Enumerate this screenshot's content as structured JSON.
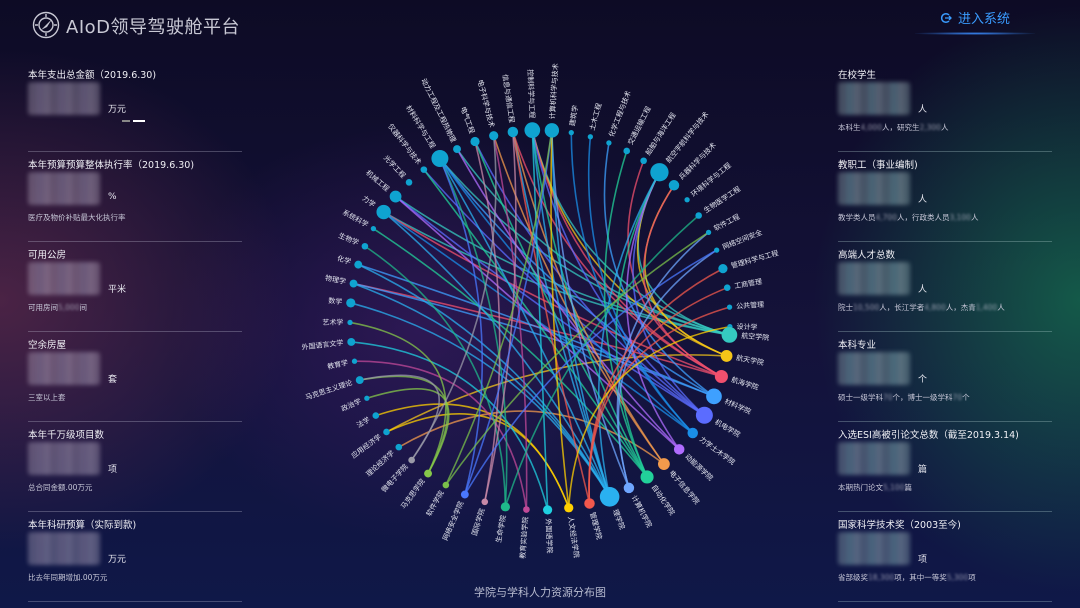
{
  "header": {
    "title": "AIoD领导驾驶舱平台",
    "enter_label": "进入系统",
    "enter_icon": "logout-arrow-icon",
    "logo_icon": "compass-gauge-icon"
  },
  "left_cards": [
    {
      "title": "本年支出总金额（2019.6.30)",
      "unit": "万元",
      "sub": [],
      "carousel": true
    },
    {
      "title": "本年预算预算整体执行率（2019.6.30)",
      "unit": "%",
      "sub": [
        "医疗及物价补贴最大化执行率",
        "",
        ""
      ]
    },
    {
      "title": "可用公房",
      "unit": "平米",
      "sub": [
        "可用房间",
        "5,000",
        "间"
      ]
    },
    {
      "title": "空余房屋",
      "unit": "套",
      "sub": [
        "三室以上",
        "",
        "套"
      ]
    },
    {
      "title": "本年千万级项目数",
      "unit": "项",
      "sub": [
        "总合同金额",
        "",
        ".00万元"
      ]
    },
    {
      "title": "本年科研预算（实际到款)",
      "unit": "万元",
      "sub": [
        "比去年同期增加",
        "",
        ".00万元"
      ]
    }
  ],
  "right_cards": [
    {
      "title": "在校学生",
      "unit": "人",
      "sub": [
        "本科生",
        "4,000",
        "人，研究生",
        "2,300",
        "人"
      ]
    },
    {
      "title": "教职工（事业编制)",
      "unit": "人",
      "sub": [
        "教学类人员",
        "4,700",
        "人，行政类人员",
        "3,100",
        "人"
      ]
    },
    {
      "title": "高端人才总数",
      "unit": "人",
      "sub": [
        "院士",
        "10,500",
        "人，长江学者",
        "4,800",
        "人，杰青",
        "1,400",
        "人"
      ]
    },
    {
      "title": "本科专业",
      "unit": "个",
      "sub": [
        "硕士一级学科",
        "70",
        "个，博士一级学科",
        "70",
        "个"
      ]
    },
    {
      "title": "入选ESI高被引论文总数（截至2019.3.14)",
      "unit": "篇",
      "sub": [
        "本期热门论文",
        "5,100",
        "篇"
      ]
    },
    {
      "title": "国家科学技术奖（2003至今)",
      "unit": "项",
      "sub": [
        "省部级奖",
        "18,300",
        "项，其中一等奖",
        "5,300",
        "项"
      ]
    }
  ],
  "chart_data": {
    "type": "chord",
    "title": "学院与学科人力资源分布图",
    "discipline_color": "#0fa3d0",
    "disciplines": [
      {
        "name": "理论经济学",
        "value": 2
      },
      {
        "name": "应用经济学",
        "value": 2
      },
      {
        "name": "法学",
        "value": 2
      },
      {
        "name": "政治学",
        "value": 1
      },
      {
        "name": "马克思主义理论",
        "value": 3
      },
      {
        "name": "教育学",
        "value": 1
      },
      {
        "name": "外国语言文学",
        "value": 3
      },
      {
        "name": "艺术学",
        "value": 1
      },
      {
        "name": "数学",
        "value": 4
      },
      {
        "name": "物理学",
        "value": 3
      },
      {
        "name": "化学",
        "value": 3
      },
      {
        "name": "生物学",
        "value": 2
      },
      {
        "name": "系统科学",
        "value": 1
      },
      {
        "name": "力学",
        "value": 8
      },
      {
        "name": "机械工程",
        "value": 6
      },
      {
        "name": "光学工程",
        "value": 2
      },
      {
        "name": "仪器科学与技术",
        "value": 2
      },
      {
        "name": "材料科学与工程",
        "value": 10
      },
      {
        "name": "动力工程及工程热物理",
        "value": 3
      },
      {
        "name": "电气工程",
        "value": 4
      },
      {
        "name": "电子科学与技术",
        "value": 4
      },
      {
        "name": "信息与通信工程",
        "value": 5
      },
      {
        "name": "控制科学与工程",
        "value": 9
      },
      {
        "name": "计算机科学与技术",
        "value": 8
      },
      {
        "name": "建筑学",
        "value": 1
      },
      {
        "name": "土木工程",
        "value": 1
      },
      {
        "name": "化学工程与技术",
        "value": 1
      },
      {
        "name": "交通运输工程",
        "value": 2
      },
      {
        "name": "船舶与海洋工程",
        "value": 2
      },
      {
        "name": "航空宇航科学与技术",
        "value": 11
      },
      {
        "name": "兵器科学与技术",
        "value": 5
      },
      {
        "name": "环境科学与工程",
        "value": 1
      },
      {
        "name": "生物医学工程",
        "value": 2
      },
      {
        "name": "软件工程",
        "value": 1
      },
      {
        "name": "网络空间安全",
        "value": 1
      },
      {
        "name": "管理科学与工程",
        "value": 4
      },
      {
        "name": "工商管理",
        "value": 2
      },
      {
        "name": "公共管理",
        "value": 1
      },
      {
        "name": "设计学",
        "value": 1
      }
    ],
    "colleges": [
      {
        "name": "航空学院",
        "value": 9,
        "color": "#35c9c0",
        "links": [
          "航空宇航科学与技术",
          "力学",
          "控制科学与工程",
          "材料科学与工程",
          "机械工程",
          "动力工程及工程热物理"
        ]
      },
      {
        "name": "航天学院",
        "value": 6,
        "color": "#f5c518",
        "links": [
          "航空宇航科学与技术",
          "控制科学与工程",
          "兵器科学与技术",
          "应用经济学"
        ]
      },
      {
        "name": "航海学院",
        "value": 7,
        "color": "#f0506e",
        "links": [
          "船舶与海洋工程",
          "兵器科学与技术",
          "控制科学与工程",
          "物理学",
          "力学",
          "信息与通信工程"
        ]
      },
      {
        "name": "材料学院",
        "value": 9,
        "color": "#3ea0ff",
        "links": [
          "材料科学与工程",
          "化学",
          "物理学",
          "化学工程与技术"
        ]
      },
      {
        "name": "机电学院",
        "value": 10,
        "color": "#5b6cff",
        "links": [
          "机械工程",
          "航空宇航科学与技术",
          "控制科学与工程",
          "电气工程",
          "仪器科学与技术"
        ]
      },
      {
        "name": "力学土木学院",
        "value": 5,
        "color": "#1a8ee8",
        "links": [
          "力学",
          "土木工程",
          "建筑学",
          "材料科学与工程"
        ]
      },
      {
        "name": "动能源学院",
        "value": 5,
        "color": "#b06cff",
        "links": [
          "动力工程及工程热物理",
          "航空宇航科学与技术",
          "机械工程"
        ]
      },
      {
        "name": "电子信息学院",
        "value": 6,
        "color": "#f29a4c",
        "links": [
          "电子科学与技术",
          "信息与通信工程",
          "理论经济学"
        ]
      },
      {
        "name": "自动化学院",
        "value": 7,
        "color": "#22d19a",
        "links": [
          "控制科学与工程",
          "电气工程",
          "仪器科学与技术",
          "系统科学",
          "交通运输工程",
          "航空宇航科学与技术"
        ]
      },
      {
        "name": "计算机学院",
        "value": 5,
        "color": "#6fa6ff",
        "links": [
          "计算机科学与技术",
          "软件工程",
          "网络空间安全"
        ]
      },
      {
        "name": "理学院",
        "value": 12,
        "color": "#2ab0f0",
        "links": [
          "数学",
          "物理学",
          "化学",
          "力学",
          "材料科学与工程",
          "计算机科学与技术",
          "控制科学与工程",
          "信息与通信工程",
          "航空宇航科学与技术"
        ]
      },
      {
        "name": "管理学院",
        "value": 5,
        "color": "#f2584c",
        "links": [
          "管理科学与工程",
          "工商管理",
          "公共管理",
          "信息与通信工程"
        ]
      },
      {
        "name": "人文经法学院",
        "value": 4,
        "color": "#ffd000",
        "links": [
          "法学",
          "应用经济学",
          "计算机科学与技术",
          "设计学"
        ]
      },
      {
        "name": "外国语学院",
        "value": 4,
        "color": "#1fd0e0",
        "links": [
          "外国语言文学",
          "控制科学与工程"
        ]
      },
      {
        "name": "教育实验学院",
        "value": 2,
        "color": "#c04a98",
        "links": [
          "教育学",
          "电子科学与技术"
        ]
      },
      {
        "name": "生命学院",
        "value": 4,
        "color": "#1fb88a",
        "links": [
          "生物学",
          "生物医学工程",
          "材料科学与工程"
        ]
      },
      {
        "name": "国际学院",
        "value": 2,
        "color": "#c88aa8",
        "links": [
          "电气工程",
          "信息与通信工程"
        ]
      },
      {
        "name": "网络安全学院",
        "value": 3,
        "color": "#4a78ff",
        "links": [
          "网络空间安全",
          "计算机科学与技术",
          "材料科学与工程"
        ]
      },
      {
        "name": "软件学院",
        "value": 2,
        "color": "#7ac04a",
        "links": [
          "软件工程",
          "计算机科学与技术"
        ]
      },
      {
        "name": "马克思学院",
        "value": 3,
        "color": "#86c84a",
        "links": [
          "马克思主义理论",
          "政治学",
          "艺术学"
        ]
      },
      {
        "name": "微电子学院",
        "value": 2,
        "color": "#9a9aa8",
        "links": [
          "电子科学与技术",
          "马克思主义理论"
        ]
      }
    ]
  }
}
